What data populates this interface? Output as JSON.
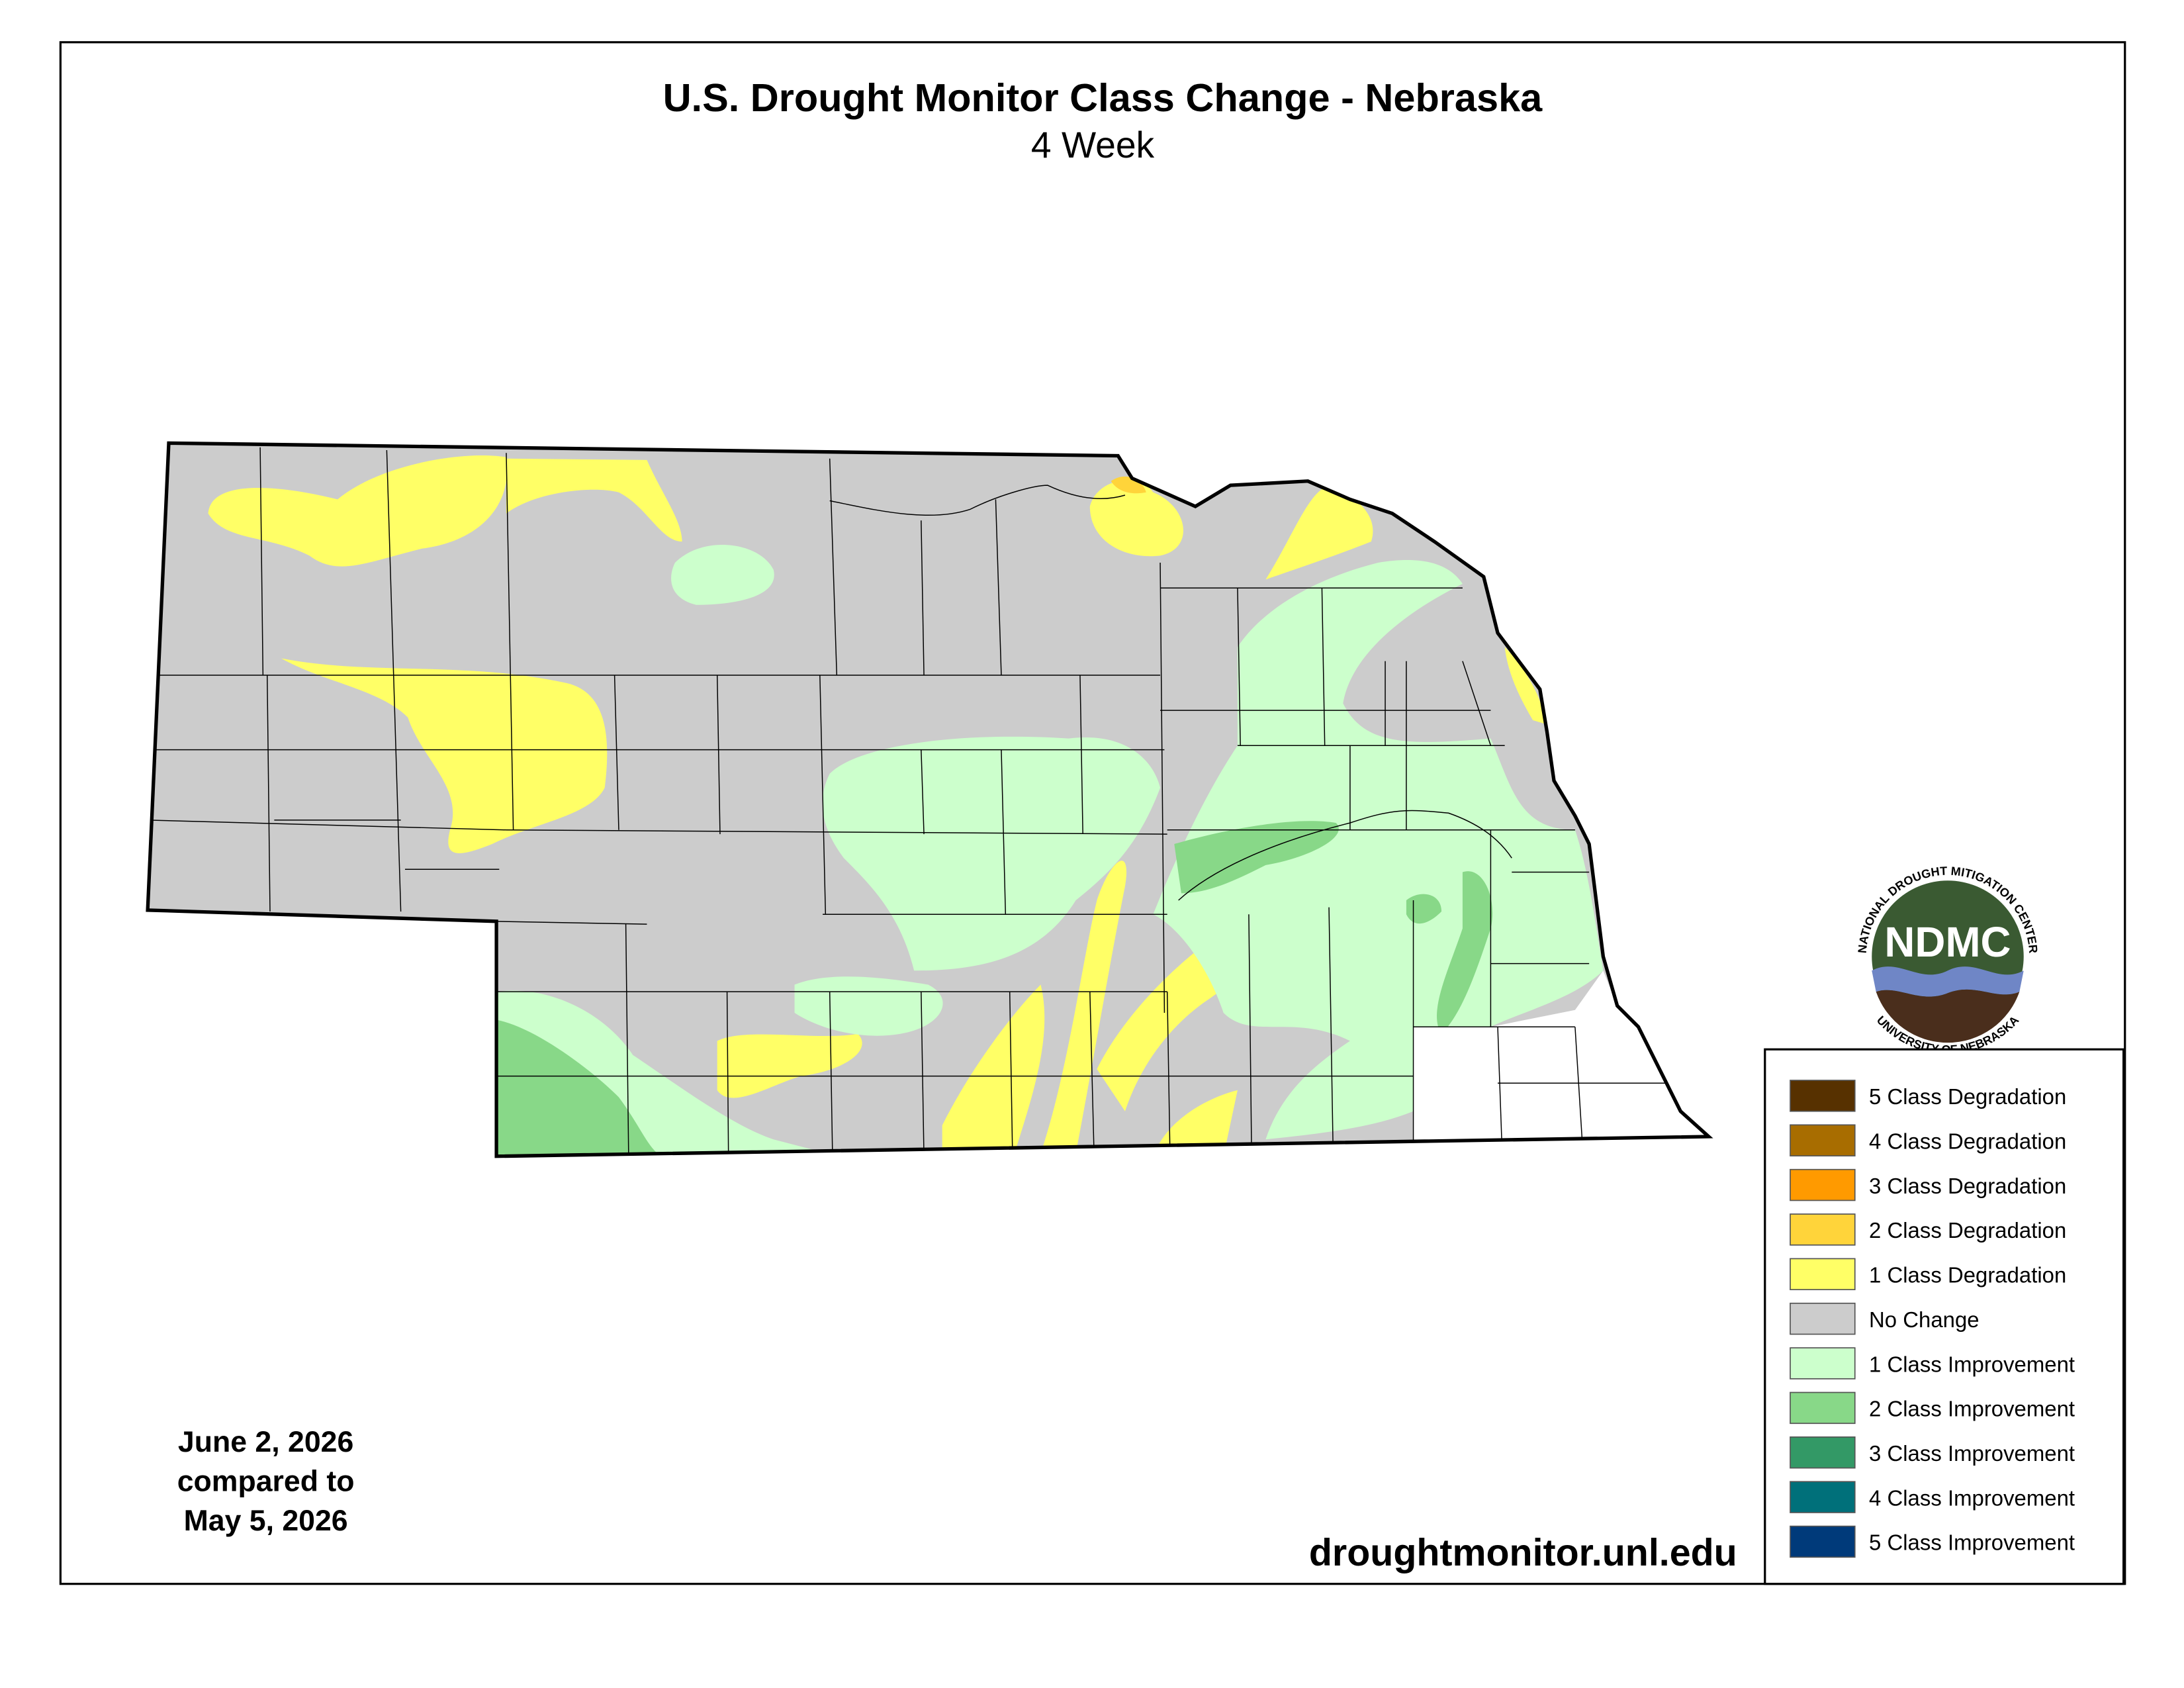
{
  "header": {
    "title": "U.S. Drought Monitor Class Change - Nebraska",
    "subtitle": "4 Week"
  },
  "date_note": [
    "June 2, 2026",
    "compared to",
    "May 5, 2026"
  ],
  "source": "droughtmonitor.unl.edu",
  "logo": {
    "acronym": "NDMC",
    "top_text": "NATIONAL DROUGHT MITIGATION CENTER",
    "bottom_text": "UNIVERSITY OF NEBRASKA"
  },
  "legend": [
    {
      "label": "5 Class Degradation",
      "color": "#573100"
    },
    {
      "label": "4 Class Degradation",
      "color": "#a86d00"
    },
    {
      "label": "3 Class Degradation",
      "color": "#ff9a00"
    },
    {
      "label": "2 Class Degradation",
      "color": "#ffd43a"
    },
    {
      "label": "1 Class Degradation",
      "color": "#ffff66"
    },
    {
      "label": "No Change",
      "color": "#cccccc"
    },
    {
      "label": "1 Class Improvement",
      "color": "#ccffcc"
    },
    {
      "label": "2 Class Improvement",
      "color": "#88d888"
    },
    {
      "label": "3 Class Improvement",
      "color": "#339966"
    },
    {
      "label": "4 Class Improvement",
      "color": "#00707a"
    },
    {
      "label": "5 Class Improvement",
      "color": "#003a7a"
    }
  ]
}
